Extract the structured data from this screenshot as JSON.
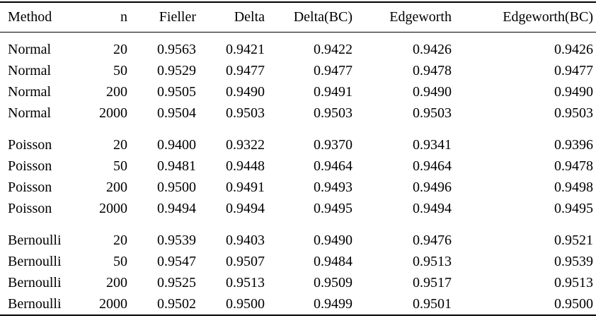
{
  "table": {
    "columns": [
      {
        "label": "Method",
        "align": "left"
      },
      {
        "label": "n",
        "align": "right"
      },
      {
        "label": "Fieller",
        "align": "right"
      },
      {
        "label": "Delta",
        "align": "right"
      },
      {
        "label": "Delta(BC)",
        "align": "right"
      },
      {
        "label": "Edgeworth",
        "align": "right"
      },
      {
        "label": "Edgeworth(BC)",
        "align": "right"
      }
    ],
    "groups": [
      {
        "method": "Normal",
        "rows": [
          [
            "Normal",
            "20",
            "0.9563",
            "0.9421",
            "0.9422",
            "0.9426",
            "0.9426"
          ],
          [
            "Normal",
            "50",
            "0.9529",
            "0.9477",
            "0.9477",
            "0.9478",
            "0.9477"
          ],
          [
            "Normal",
            "200",
            "0.9505",
            "0.9490",
            "0.9491",
            "0.9490",
            "0.9490"
          ],
          [
            "Normal",
            "2000",
            "0.9504",
            "0.9503",
            "0.9503",
            "0.9503",
            "0.9503"
          ]
        ]
      },
      {
        "method": "Poisson",
        "rows": [
          [
            "Poisson",
            "20",
            "0.9400",
            "0.9322",
            "0.9370",
            "0.9341",
            "0.9396"
          ],
          [
            "Poisson",
            "50",
            "0.9481",
            "0.9448",
            "0.9464",
            "0.9464",
            "0.9478"
          ],
          [
            "Poisson",
            "200",
            "0.9500",
            "0.9491",
            "0.9493",
            "0.9496",
            "0.9498"
          ],
          [
            "Poisson",
            "2000",
            "0.9494",
            "0.9494",
            "0.9495",
            "0.9494",
            "0.9495"
          ]
        ]
      },
      {
        "method": "Bernoulli",
        "rows": [
          [
            "Bernoulli",
            "20",
            "0.9539",
            "0.9403",
            "0.9490",
            "0.9476",
            "0.9521"
          ],
          [
            "Bernoulli",
            "50",
            "0.9547",
            "0.9507",
            "0.9484",
            "0.9513",
            "0.9539"
          ],
          [
            "Bernoulli",
            "200",
            "0.9525",
            "0.9513",
            "0.9509",
            "0.9517",
            "0.9513"
          ],
          [
            "Bernoulli",
            "2000",
            "0.9502",
            "0.9500",
            "0.9499",
            "0.9501",
            "0.9500"
          ]
        ]
      }
    ],
    "colors": {
      "text": "#000000",
      "rule": "#000000",
      "background": "#ffffff"
    }
  }
}
